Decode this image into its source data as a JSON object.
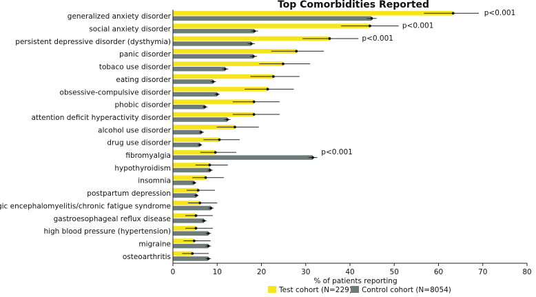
{
  "chart_data": {
    "type": "bar",
    "orientation": "horizontal",
    "title": "Top Comorbidities Reported",
    "xlabel": "% of patients reporting",
    "ylabel": "",
    "xlim": [
      0,
      80
    ],
    "xticks": [
      0,
      10,
      20,
      30,
      40,
      50,
      60,
      70,
      80
    ],
    "categories": [
      "generalized anxiety disorder",
      "social anxiety disorder",
      "persistent depressive disorder (dysthymia)",
      "panic disorder",
      "tobaco use disorder",
      "eating disorder",
      "obsessive-compulsive  disorder",
      "phobic disorder",
      "attention deficit hyperactivity disorder",
      "alcohol use disorder",
      "drug use disorder",
      "fibromyalgia",
      "hypothyroidism",
      "insomnia",
      "postpartum depression",
      "myalgic encephalomyelitis/chronic fatigue syndrome",
      "gastroesophageal reflux disease",
      "high blood pressure (hypertension)",
      "migraine",
      "osteoarthritis"
    ],
    "series": [
      {
        "name": "Test cohort (N=229)",
        "color": "#F7E51B",
        "values": [
          63.3,
          44.5,
          35.4,
          27.9,
          24.9,
          22.7,
          21.4,
          18.3,
          18.3,
          14.0,
          10.5,
          9.6,
          8.3,
          7.4,
          5.7,
          6.1,
          5.2,
          5.2,
          4.8,
          4.4
        ],
        "ci_low": [
          56.7,
          38.0,
          29.3,
          22.2,
          19.5,
          17.5,
          16.2,
          13.5,
          13.5,
          9.9,
          6.9,
          6.2,
          5.1,
          4.4,
          3.1,
          3.4,
          2.8,
          2.8,
          2.4,
          2.1
        ],
        "ci_high": [
          69.1,
          51.0,
          41.9,
          34.1,
          31.0,
          28.6,
          27.3,
          24.1,
          24.1,
          19.4,
          15.1,
          14.3,
          12.4,
          11.5,
          9.5,
          10.0,
          9.0,
          9.0,
          8.5,
          8.1
        ]
      },
      {
        "name": "Control cohort (N=8054)",
        "color": "#6E7B7B",
        "values": [
          44.9,
          18.4,
          17.7,
          18.2,
          11.8,
          9.1,
          10.0,
          7.2,
          12.3,
          6.4,
          6.1,
          31.6,
          8.4,
          4.8,
          5.3,
          8.6,
          7.0,
          8.0,
          8.0,
          8.0
        ],
        "ci_low": [
          43.8,
          17.6,
          16.9,
          17.4,
          11.1,
          8.5,
          9.4,
          6.7,
          11.6,
          5.9,
          5.6,
          30.6,
          7.8,
          4.3,
          4.8,
          8.0,
          6.5,
          7.4,
          7.4,
          7.4
        ],
        "ci_high": [
          46.0,
          19.2,
          18.5,
          19.0,
          12.5,
          9.7,
          10.6,
          7.8,
          13.0,
          7.0,
          6.6,
          32.6,
          9.0,
          5.3,
          5.8,
          9.2,
          7.6,
          8.6,
          8.6,
          8.6
        ]
      }
    ],
    "annotations": [
      {
        "category_index": 0,
        "text": "p<0.001",
        "anchor_value": 70.0
      },
      {
        "category_index": 1,
        "text": "p<0.001",
        "anchor_value": 51.5
      },
      {
        "category_index": 2,
        "text": "p<0.001",
        "anchor_value": 42.4
      },
      {
        "category_index": 11,
        "text": "p<0.001",
        "anchor_value": 33.2
      }
    ],
    "legend_position": "bottom"
  }
}
